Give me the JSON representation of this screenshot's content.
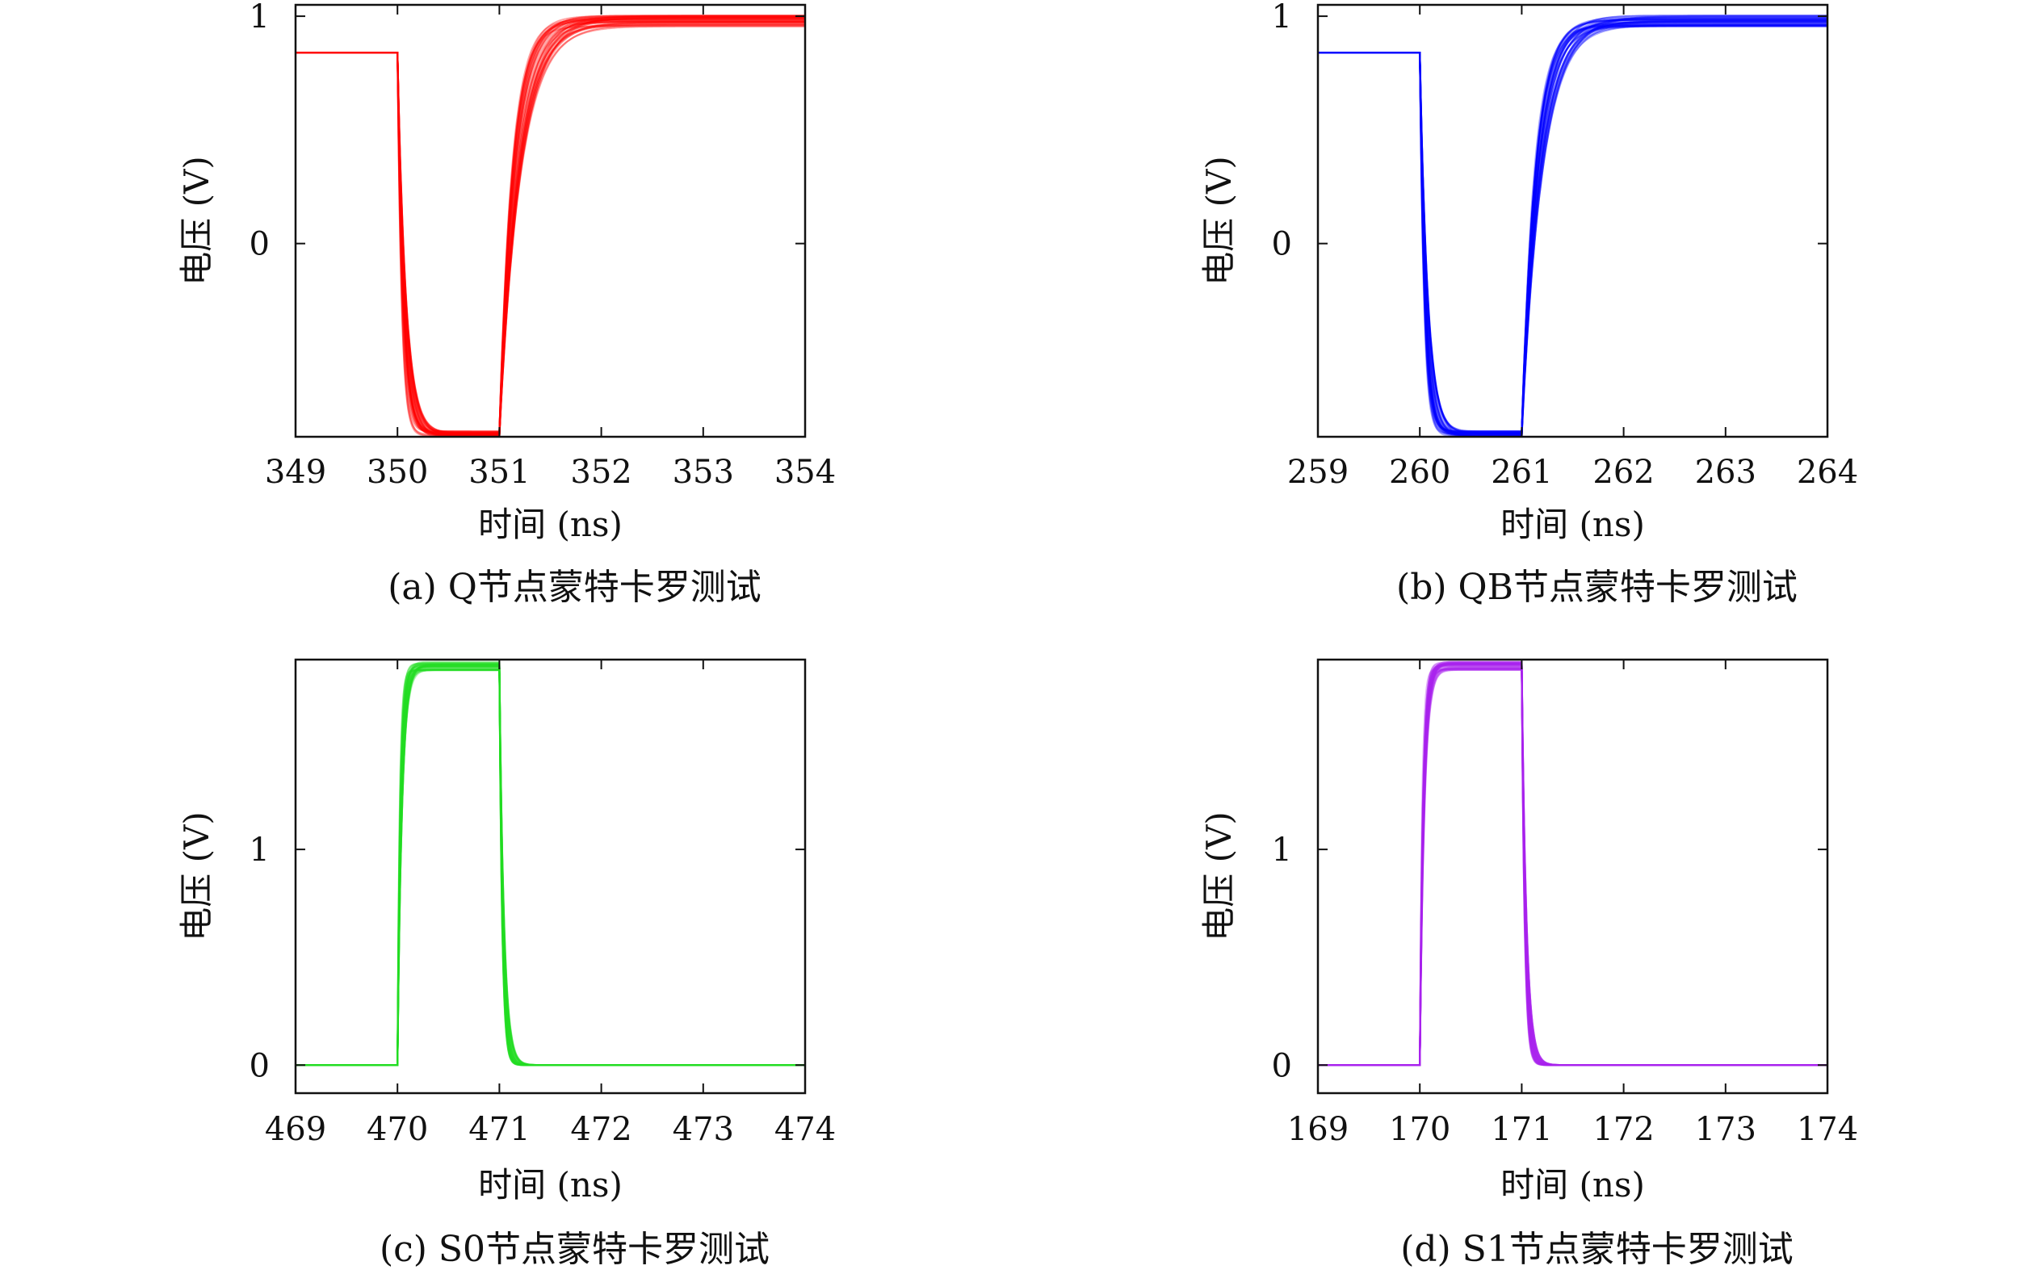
{
  "chart_data": [
    {
      "type": "line",
      "caption": "(a) Q节点蒙特卡罗测试",
      "xlabel": "时间 (ns)",
      "ylabel": "电压 (V)",
      "xlim": [
        349,
        354
      ],
      "ylim": [
        -0.85,
        1.05
      ],
      "xticks": [
        "349",
        "350",
        "351",
        "352",
        "353",
        "354"
      ],
      "yticks": [
        {
          "value": 0,
          "label": "0"
        },
        {
          "value": 1,
          "label": "1"
        }
      ],
      "color": "#ff0000",
      "waveform": {
        "kind": "falling-pulse",
        "start": 350,
        "end": 351,
        "initial": 0.84,
        "low": -0.84,
        "final": 0.98,
        "spread": 0.05
      }
    },
    {
      "type": "line",
      "caption": "(b) QB节点蒙特卡罗测试",
      "xlabel": "时间 (ns)",
      "ylabel": "电压 (V)",
      "xlim": [
        259,
        264
      ],
      "ylim": [
        -0.85,
        1.05
      ],
      "xticks": [
        "259",
        "260",
        "261",
        "262",
        "263",
        "264"
      ],
      "yticks": [
        {
          "value": 0,
          "label": "0"
        },
        {
          "value": 1,
          "label": "1"
        }
      ],
      "color": "#0000ff",
      "waveform": {
        "kind": "falling-pulse",
        "start": 260,
        "end": 261,
        "initial": 0.84,
        "low": -0.84,
        "final": 0.98,
        "spread": 0.05
      }
    },
    {
      "type": "line",
      "caption": "(c) S0节点蒙特卡罗测试",
      "xlabel": "时间 (ns)",
      "ylabel": "电压 (V)",
      "xlim": [
        469,
        474
      ],
      "ylim": [
        -0.13,
        1.88
      ],
      "xticks": [
        "469",
        "470",
        "471",
        "472",
        "473",
        "474"
      ],
      "yticks": [
        {
          "value": 0,
          "label": "0"
        },
        {
          "value": 1,
          "label": "1"
        }
      ],
      "color": "#22dd22",
      "waveform": {
        "kind": "rising-pulse",
        "start": 470,
        "end": 471,
        "low": 0,
        "high": 1.85,
        "spread": 0.04
      }
    },
    {
      "type": "line",
      "caption": "(d) S1节点蒙特卡罗测试",
      "xlabel": "时间 (ns)",
      "ylabel": "电压 (V)",
      "xlim": [
        169,
        174
      ],
      "ylim": [
        -0.13,
        1.88
      ],
      "xticks": [
        "169",
        "170",
        "171",
        "172",
        "173",
        "174"
      ],
      "yticks": [
        {
          "value": 0,
          "label": "0"
        },
        {
          "value": 1,
          "label": "1"
        }
      ],
      "color": "#aa22ee",
      "waveform": {
        "kind": "rising-pulse",
        "start": 170,
        "end": 171,
        "low": 0,
        "high": 1.85,
        "spread": 0.04
      }
    }
  ]
}
